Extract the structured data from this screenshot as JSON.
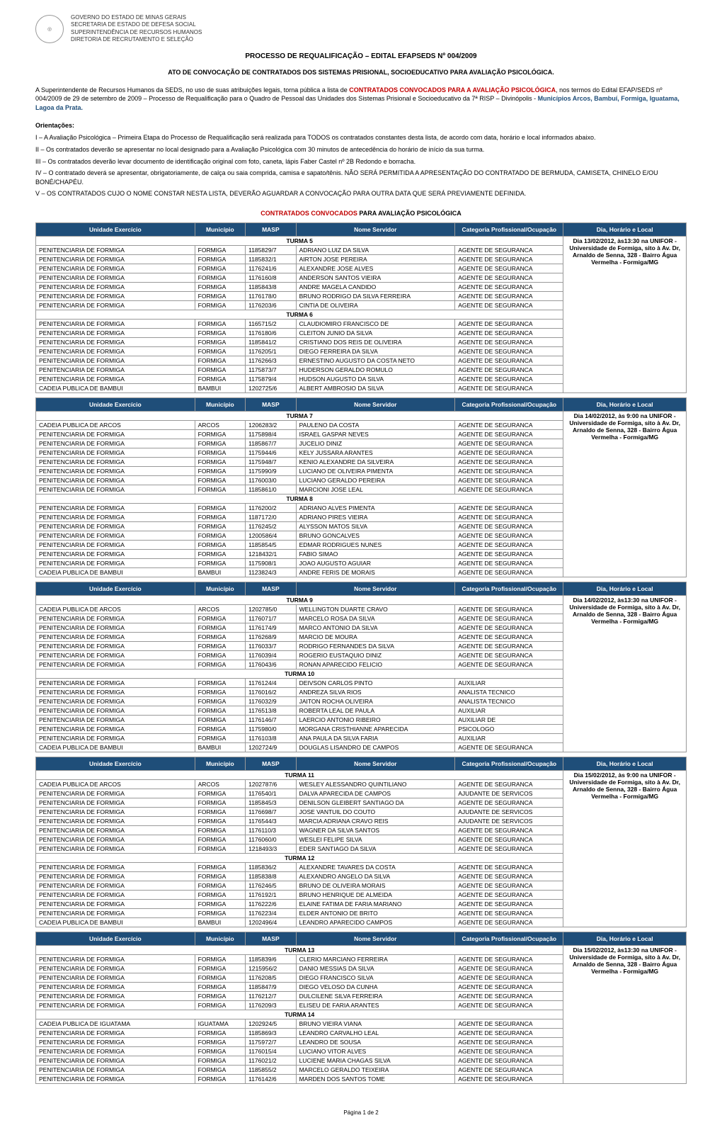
{
  "gov": {
    "lines": [
      "GOVERNO DO ESTADO DE MINAS GERAIS",
      "SECRETARIA DE ESTADO DE DEFESA SOCIAL",
      "SUPERINTENDÊNCIA DE RECURSOS HUMANOS",
      "DIRETORIA DE RECRUTAMENTO E SELEÇÃO"
    ]
  },
  "titles": {
    "main": "PROCESSO DE REQUALIFICAÇÃO – EDITAL EFAPSEDS Nº 004/2009",
    "sub": "ATO DE CONVOCAÇÃO DE CONTRATADOS DOS SISTEMAS PRISIONAL, SOCIOEDUCATIVO PARA AVALIAÇÃO PSICOLÓGICA.",
    "contratados": "CONTRATADOS CONVOCADOS",
    "contratados_suffix": " PARA AVALIAÇÃO PSICOLÓGICA"
  },
  "intro": {
    "prefix": "A Superintendente de Recursos Humanos da SEDS, no uso de suas atribuições legais, torna pública a lista de ",
    "red": "CONTRATADOS CONVOCADOS PARA A AVALIAÇÃO PSICOLÓGICA",
    "middle": ", nos termos do Edital EFAP/SEDS nº 004/2009 de 29 de setembro de 2009 – Processo de Requalificação para o Quadro de Pessoal das Unidades dos Sistemas Prisional e Socioeducativo da 7ª RISP – Divinópolis - ",
    "blue": "Municípios Arcos, Bambuí, Formiga, Iguatama, Lagoa da Prata."
  },
  "orientacoes_label": "Orientações:",
  "orientacoes": [
    "I – A Avaliação Psicológica – Primeira Etapa do Processo de Requalificação será realizada para TODOS os contratados constantes desta lista, de acordo com data, horário e local informados abaixo.",
    "II – Os contratados deverão se apresentar no local designado para a Avaliação Psicológica com 30 minutos de antecedência do horário de início da sua turma.",
    "III – Os contratados deverão levar documento de identificação original com foto, caneta, lápis Faber Castel nº 2B Redondo e borracha.",
    "IV – O contratado deverá se apresentar, obrigatoriamente, de calça ou saia comprida, camisa e sapato/tênis. NÃO SERÁ PERMITIDA A APRESENTAÇÃO DO CONTRATADO DE BERMUDA, CAMISETA, CHINELO E/OU BONÉ/CHAPÉU.",
    "V – OS CONTRATADOS CUJO O NOME CONSTAR NESTA LISTA, DEVERÃO AGUARDAR A CONVOCAÇÃO PARA OUTRA DATA QUE SERÁ PREVIAMENTE DEFINIDA."
  ],
  "headers": {
    "unidade": "Unidade Exercício",
    "municipio": "Município",
    "masp": "MASP",
    "nome": "Nome Servidor",
    "categoria": "Categoria Profissional/Ocupação",
    "local": "Dia, Horário e Local"
  },
  "blocks": [
    {
      "local": "Dia 13/02/2012, às13:30 na UNIFOR - Universidade de Formiga, sito à Av. Dr, Arnaldo de Senna, 328 - Bairro Água Vermelha - Formiga/MG",
      "turmas": [
        {
          "label": "TURMA 5",
          "rows": [
            [
              "PENITENCIARIA DE FORMIGA",
              "FORMIGA",
              "1185829/7",
              "ADRIANO LUIZ DA SILVA",
              "AGENTE DE SEGURANCA"
            ],
            [
              "PENITENCIARIA DE FORMIGA",
              "FORMIGA",
              "1185832/1",
              "AIRTON JOSE PEREIRA",
              "AGENTE DE SEGURANCA"
            ],
            [
              "PENITENCIARIA DE FORMIGA",
              "FORMIGA",
              "1176241/6",
              "ALEXANDRE JOSE ALVES",
              "AGENTE DE SEGURANCA"
            ],
            [
              "PENITENCIARIA DE FORMIGA",
              "FORMIGA",
              "1176160/8",
              "ANDERSON SANTOS VIEIRA",
              "AGENTE DE SEGURANCA"
            ],
            [
              "PENITENCIARIA DE FORMIGA",
              "FORMIGA",
              "1185843/8",
              "ANDRE MAGELA CANDIDO",
              "AGENTE DE SEGURANCA"
            ],
            [
              "PENITENCIARIA DE FORMIGA",
              "FORMIGA",
              "1176178/0",
              "BRUNO RODRIGO DA SILVA FERREIRA",
              "AGENTE DE SEGURANCA"
            ],
            [
              "PENITENCIARIA DE FORMIGA",
              "FORMIGA",
              "1176203/6",
              "CINTIA DE OLIVEIRA",
              "AGENTE DE SEGURANCA"
            ]
          ]
        },
        {
          "label": "TURMA 6",
          "rows": [
            [
              "PENITENCIARIA DE FORMIGA",
              "FORMIGA",
              "1165715/2",
              "CLAUDIOMIRO FRANCISCO DE",
              "AGENTE DE SEGURANCA"
            ],
            [
              "PENITENCIARIA DE FORMIGA",
              "FORMIGA",
              "1176180/6",
              "CLEITON JUNIO DA SILVA",
              "AGENTE DE SEGURANCA"
            ],
            [
              "PENITENCIARIA DE FORMIGA",
              "FORMIGA",
              "1185841/2",
              "CRISTIANO DOS REIS DE OLIVEIRA",
              "AGENTE DE SEGURANCA"
            ],
            [
              "PENITENCIARIA DE FORMIGA",
              "FORMIGA",
              "1176205/1",
              "DIEGO FERREIRA DA SILVA",
              "AGENTE DE SEGURANCA"
            ],
            [
              "PENITENCIARIA DE FORMIGA",
              "FORMIGA",
              "1176266/3",
              "ERNESTINO AUGUSTO DA COSTA NETO",
              "AGENTE DE SEGURANCA"
            ],
            [
              "PENITENCIARIA DE FORMIGA",
              "FORMIGA",
              "1175873/7",
              "HUDERSON GERALDO ROMULO",
              "AGENTE DE SEGURANCA"
            ],
            [
              "PENITENCIARIA DE FORMIGA",
              "FORMIGA",
              "1175879/4",
              "HUDSON AUGUSTO DA SILVA",
              "AGENTE DE SEGURANCA"
            ],
            [
              "CADEIA PUBLICA DE BAMBUI",
              "BAMBUI",
              "1202725/6",
              "ALBERT AMBROSIO DA SILVA",
              "AGENTE DE SEGURANCA"
            ]
          ]
        }
      ]
    },
    {
      "local": "Dia 14/02/2012, às 9:00 na UNIFOR - Universidade de Formiga, sito à Av. Dr, Arnaldo de Senna, 328 - Bairro Água Vermelha - Formiga/MG",
      "turmas": [
        {
          "label": "TURMA 7",
          "rows": [
            [
              "CADEIA PUBLICA DE ARCOS",
              "ARCOS",
              "1206283/2",
              "PAULENO DA COSTA",
              "AGENTE DE SEGURANCA"
            ],
            [
              "PENITENCIARIA DE FORMIGA",
              "FORMIGA",
              "1175898/4",
              "ISRAEL GASPAR NEVES",
              "AGENTE DE SEGURANCA"
            ],
            [
              "PENITENCIARIA DE FORMIGA",
              "FORMIGA",
              "1185867/7",
              "JUCELIO DINIZ",
              "AGENTE DE SEGURANCA"
            ],
            [
              "PENITENCIARIA DE FORMIGA",
              "FORMIGA",
              "1175944/6",
              "KELY JUSSARA ARANTES",
              "AGENTE DE SEGURANCA"
            ],
            [
              "PENITENCIARIA DE FORMIGA",
              "FORMIGA",
              "1175948/7",
              "KENIO ALEXANDRE DA SILVEIRA",
              "AGENTE DE SEGURANCA"
            ],
            [
              "PENITENCIARIA DE FORMIGA",
              "FORMIGA",
              "1175990/9",
              "LUCIANO DE OLIVEIRA PIMENTA",
              "AGENTE DE SEGURANCA"
            ],
            [
              "PENITENCIARIA DE FORMIGA",
              "FORMIGA",
              "1176003/0",
              "LUCIANO GERALDO PEREIRA",
              "AGENTE DE SEGURANCA"
            ],
            [
              "PENITENCIARIA DE FORMIGA",
              "FORMIGA",
              "1185861/0",
              "MARCIONI JOSE LEAL",
              "AGENTE DE SEGURANCA"
            ]
          ]
        },
        {
          "label": "TURMA 8",
          "rows": [
            [
              "PENITENCIARIA DE FORMIGA",
              "FORMIGA",
              "1176200/2",
              "ADRIANO ALVES PIMENTA",
              "AGENTE DE SEGURANCA"
            ],
            [
              "PENITENCIARIA DE FORMIGA",
              "FORMIGA",
              "1187172/0",
              "ADRIANO PIRES VIEIRA",
              "AGENTE DE SEGURANCA"
            ],
            [
              "PENITENCIARIA DE FORMIGA",
              "FORMIGA",
              "1176245/2",
              "ALYSSON MATOS SILVA",
              "AGENTE DE SEGURANCA"
            ],
            [
              "PENITENCIARIA DE FORMIGA",
              "FORMIGA",
              "1200586/4",
              "BRUNO GONCALVES",
              "AGENTE DE SEGURANCA"
            ],
            [
              "PENITENCIARIA DE FORMIGA",
              "FORMIGA",
              "1185854/5",
              "EDMAR RODRIGUES NUNES",
              "AGENTE DE SEGURANCA"
            ],
            [
              "PENITENCIARIA DE FORMIGA",
              "FORMIGA",
              "1218432/1",
              "FABIO SIMAO",
              "AGENTE DE SEGURANCA"
            ],
            [
              "PENITENCIARIA DE FORMIGA",
              "FORMIGA",
              "1175908/1",
              "JOAO AUGUSTO AGUIAR",
              "AGENTE DE SEGURANCA"
            ],
            [
              "CADEIA PUBLICA DE BAMBUI",
              "BAMBUI",
              "1123824/3",
              "ANDRE FERIS DE MORAIS",
              "AGENTE DE SEGURANCA"
            ]
          ]
        }
      ]
    },
    {
      "local": "Dia 14/02/2012, às13:30 na UNIFOR - Universidade de Formiga, sito à Av. Dr, Arnaldo de Senna, 328 - Bairro Água Vermelha - Formiga/MG",
      "turmas": [
        {
          "label": "TURMA 9",
          "rows": [
            [
              "CADEIA PUBLICA DE ARCOS",
              "ARCOS",
              "1202785/0",
              "WELLINGTON DUARTE CRAVO",
              "AGENTE DE SEGURANCA"
            ],
            [
              "PENITENCIARIA DE FORMIGA",
              "FORMIGA",
              "1176071/7",
              "MARCELO ROSA DA SILVA",
              "AGENTE DE SEGURANCA"
            ],
            [
              "PENITENCIARIA DE FORMIGA",
              "FORMIGA",
              "1176174/9",
              "MARCO ANTONIO DA SILVA",
              "AGENTE DE SEGURANCA"
            ],
            [
              "PENITENCIARIA DE FORMIGA",
              "FORMIGA",
              "1176268/9",
              "MARCIO DE MOURA",
              "AGENTE DE SEGURANCA"
            ],
            [
              "PENITENCIARIA DE FORMIGA",
              "FORMIGA",
              "1176033/7",
              "RODRIGO FERNANDES DA SILVA",
              "AGENTE DE SEGURANCA"
            ],
            [
              "PENITENCIARIA DE FORMIGA",
              "FORMIGA",
              "1176039/4",
              "ROGERIO EUSTAQUIO DINIZ",
              "AGENTE DE SEGURANCA"
            ],
            [
              "PENITENCIARIA DE FORMIGA",
              "FORMIGA",
              "1176043/6",
              "RONAN APARECIDO FELICIO",
              "AGENTE DE SEGURANCA"
            ]
          ]
        },
        {
          "label": "TURMA 10",
          "rows": [
            [
              "PENITENCIARIA DE FORMIGA",
              "FORMIGA",
              "1176124/4",
              "DEIVSON CARLOS PINTO",
              "AUXILIAR"
            ],
            [
              "PENITENCIARIA DE FORMIGA",
              "FORMIGA",
              "1176016/2",
              "ANDREZA SILVA RIOS",
              "ANALISTA TECNICO"
            ],
            [
              "PENITENCIARIA DE FORMIGA",
              "FORMIGA",
              "1176032/9",
              "JAITON ROCHA OLIVEIRA",
              "ANALISTA TECNICO"
            ],
            [
              "PENITENCIARIA DE FORMIGA",
              "FORMIGA",
              "1176513/8",
              "ROBERTA LEAL DE PAULA",
              "AUXILIAR"
            ],
            [
              "PENITENCIARIA DE FORMIGA",
              "FORMIGA",
              "1176146/7",
              "LAERCIO ANTONIO RIBEIRO",
              "AUXILIAR DE"
            ],
            [
              "PENITENCIARIA DE FORMIGA",
              "FORMIGA",
              "1175980/0",
              "MORGANA CRISTHIANNE APARECIDA",
              "PSICOLOGO"
            ],
            [
              "PENITENCIARIA DE FORMIGA",
              "FORMIGA",
              "1176103/8",
              "ANA PAULA DA SILVA FARIA",
              "AUXILIAR"
            ],
            [
              "CADEIA PUBLICA DE BAMBUI",
              "BAMBUI",
              "1202724/9",
              "DOUGLAS LISANDRO DE CAMPOS",
              "AGENTE DE SEGURANCA"
            ]
          ]
        }
      ]
    },
    {
      "local": "Dia 15/02/2012, às 9:00 na UNIFOR - Universidade de Formiga, sito à Av. Dr, Arnaldo de Senna, 328 - Bairro Água Vermelha - Formiga/MG",
      "turmas": [
        {
          "label": "TURMA 11",
          "rows": [
            [
              "CADEIA PUBLICA DE ARCOS",
              "ARCOS",
              "1202787/6",
              "WESLEY ALESSANDRO QUINTILIANO",
              "AGENTE DE SEGURANCA"
            ],
            [
              "PENITENCIARIA DE FORMIGA",
              "FORMIGA",
              "1176540/1",
              "DALVA APARECIDA DE CAMPOS",
              "AJUDANTE DE SERVICOS"
            ],
            [
              "PENITENCIARIA DE FORMIGA",
              "FORMIGA",
              "1185845/3",
              "DENILSON GLEIBERT SANTIAGO DA",
              "AGENTE DE SEGURANCA"
            ],
            [
              "PENITENCIARIA DE FORMIGA",
              "FORMIGA",
              "1176698/7",
              "JOSE VANTUIL DO COUTO",
              "AJUDANTE DE SERVICOS"
            ],
            [
              "PENITENCIARIA DE FORMIGA",
              "FORMIGA",
              "1176544/3",
              "MARCIA ADRIANA CRAVO REIS",
              "AJUDANTE DE SERVICOS"
            ],
            [
              "PENITENCIARIA DE FORMIGA",
              "FORMIGA",
              "1176110/3",
              "WAGNER DA SILVA SANTOS",
              "AGENTE DE SEGURANCA"
            ],
            [
              "PENITENCIARIA DE FORMIGA",
              "FORMIGA",
              "1176060/0",
              "WESLEI FELIPE SILVA",
              "AGENTE DE SEGURANCA"
            ],
            [
              "PENITENCIARIA DE FORMIGA",
              "FORMIGA",
              "1218493/3",
              "EDER SANTIAGO DA SILVA",
              "AGENTE DE SEGURANCA"
            ]
          ]
        },
        {
          "label": "TURMA 12",
          "rows": [
            [
              "PENITENCIARIA DE FORMIGA",
              "FORMIGA",
              "1185836/2",
              "ALEXANDRE TAVARES DA COSTA",
              "AGENTE DE SEGURANCA"
            ],
            [
              "PENITENCIARIA DE FORMIGA",
              "FORMIGA",
              "1185838/8",
              "ALEXANDRO ANGELO DA SILVA",
              "AGENTE DE SEGURANCA"
            ],
            [
              "PENITENCIARIA DE FORMIGA",
              "FORMIGA",
              "1176246/5",
              "BRUNO DE OLIVEIRA MORAIS",
              "AGENTE DE SEGURANCA"
            ],
            [
              "PENITENCIARIA DE FORMIGA",
              "FORMIGA",
              "1176192/1",
              "BRUNO HENRIQUE DE ALMEIDA",
              "AGENTE DE SEGURANCA"
            ],
            [
              "PENITENCIARIA DE FORMIGA",
              "FORMIGA",
              "1176222/6",
              "ELAINE FATIMA DE FARIA MARIANO",
              "AGENTE DE SEGURANCA"
            ],
            [
              "PENITENCIARIA DE FORMIGA",
              "FORMIGA",
              "1176223/4",
              "ELDER ANTONIO DE BRITO",
              "AGENTE DE SEGURANCA"
            ],
            [
              "CADEIA PUBLICA DE BAMBUI",
              "BAMBUI",
              "1202496/4",
              "LEANDRO APARECIDO CAMPOS",
              "AGENTE DE SEGURANCA"
            ]
          ]
        }
      ]
    },
    {
      "local": "Dia 15/02/2012, às13:30 na UNIFOR - Universidade de Formiga, sito à Av. Dr, Arnaldo de Senna, 328 - Bairro Água Vermelha - Formiga/MG",
      "turmas": [
        {
          "label": "TURMA 13",
          "rows": [
            [
              "PENITENCIARIA DE FORMIGA",
              "FORMIGA",
              "1185839/6",
              "CLERIO MARCIANO FERREIRA",
              "AGENTE DE SEGURANCA"
            ],
            [
              "PENITENCIARIA DE FORMIGA",
              "FORMIGA",
              "1215956/2",
              "DANIO MESSIAS DA SILVA",
              "AGENTE DE SEGURANCA"
            ],
            [
              "PENITENCIARIA DE FORMIGA",
              "FORMIGA",
              "1176208/5",
              "DIEGO FRANCISCO SILVA",
              "AGENTE DE SEGURANCA"
            ],
            [
              "PENITENCIARIA DE FORMIGA",
              "FORMIGA",
              "1185847/9",
              "DIEGO VELOSO DA CUNHA",
              "AGENTE DE SEGURANCA"
            ],
            [
              "PENITENCIARIA DE FORMIGA",
              "FORMIGA",
              "1176212/7",
              "DULCILENE SILVA FERREIRA",
              "AGENTE DE SEGURANCA"
            ],
            [
              "PENITENCIARIA DE FORMIGA",
              "FORMIGA",
              "1176209/3",
              "ELISEU DE FARIA ARANTES",
              "AGENTE DE SEGURANCA"
            ]
          ]
        },
        {
          "label": "TURMA 14",
          "rows": [
            [
              "CADEIA PUBLICA DE IGUATAMA",
              "IGUATAMA",
              "1202924/5",
              "BRUNO VIEIRA VIANA",
              "AGENTE DE SEGURANCA"
            ],
            [
              "PENITENCIARIA DE FORMIGA",
              "FORMIGA",
              "1185869/3",
              "LEANDRO CARVALHO LEAL",
              "AGENTE DE SEGURANCA"
            ],
            [
              "PENITENCIARIA DE FORMIGA",
              "FORMIGA",
              "1175972/7",
              "LEANDRO DE SOUSA",
              "AGENTE DE SEGURANCA"
            ],
            [
              "PENITENCIARIA DE FORMIGA",
              "FORMIGA",
              "1176015/4",
              "LUCIANO VITOR ALVES",
              "AGENTE DE SEGURANCA"
            ],
            [
              "PENITENCIARIA DE FORMIGA",
              "FORMIGA",
              "1176021/2",
              "LUCIENE MARIA CHAGAS SILVA",
              "AGENTE DE SEGURANCA"
            ],
            [
              "PENITENCIARIA DE FORMIGA",
              "FORMIGA",
              "1185855/2",
              "MARCELO GERALDO TEIXEIRA",
              "AGENTE DE SEGURANCA"
            ],
            [
              "PENITENCIARIA DE FORMIGA",
              "FORMIGA",
              "1176142/6",
              "MARDEN DOS SANTOS TOME",
              "AGENTE DE SEGURANCA"
            ]
          ]
        }
      ]
    }
  ],
  "footer": "Página 1 de 2"
}
